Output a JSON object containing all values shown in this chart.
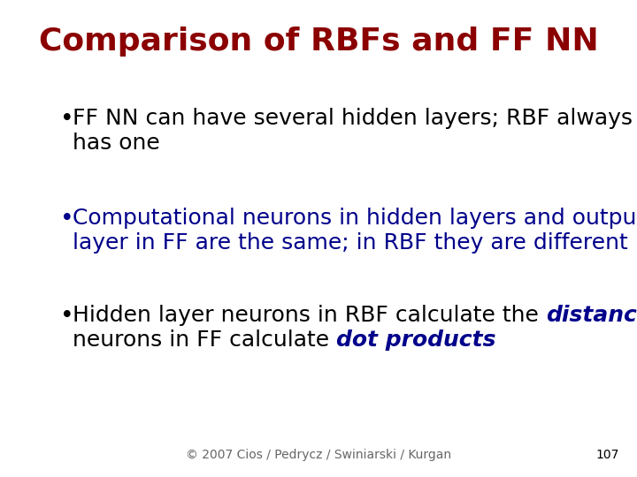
{
  "title": "Comparison of RBFs and FF NN",
  "title_color": "#8B0000",
  "title_fontsize": 26,
  "background_color": "#FFFFFF",
  "bullet1_line1": "FF NN can have several hidden layers; RBF always",
  "bullet1_line2": "has one",
  "bullet1_color": "#000000",
  "bullet2_line1": "Computational neurons in hidden layers and output",
  "bullet2_line2": "layer in FF are the same; in RBF they are different",
  "bullet2_color": "#00008B",
  "bullet3_prefix": "Hidden layer neurons in RBF calculate the ",
  "bullet3_italic1": "distance",
  "bullet3_suffix": ";",
  "bullet3_line2_prefix": "neurons in FF calculate ",
  "bullet3_italic2": "dot products",
  "bullet3_color": "#000000",
  "bullet3_italic_color": "#00008B",
  "bullet_fontsize": 18,
  "footer": "© 2007 Cios / Pedrycz / Swiniarski / Kurgan",
  "footer_color": "#666666",
  "footer_fontsize": 10,
  "page_number": "107",
  "page_number_color": "#000000",
  "page_number_fontsize": 10
}
